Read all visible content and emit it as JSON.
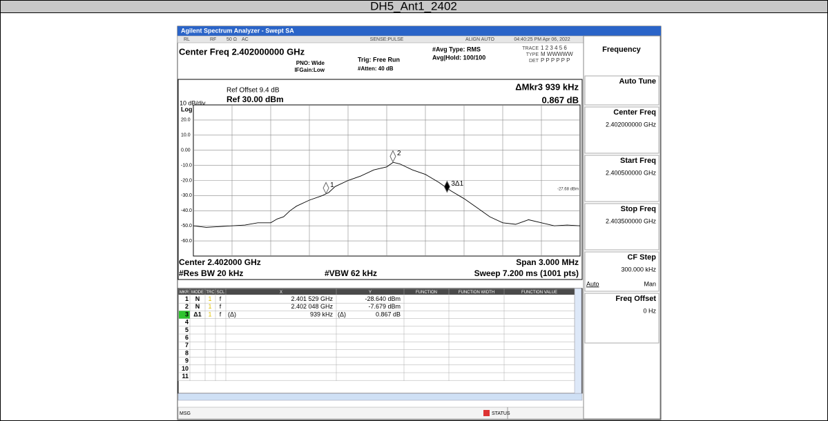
{
  "title": "DH5_Ant1_2402",
  "analyzer": {
    "window_title": "Agilent Spectrum Analyzer - Swept SA",
    "status_bar": [
      "RL",
      "RF",
      "50 Ω",
      "AC",
      "SENSE:PULSE",
      "ALIGN AUTO",
      "04:40:25 PM Apr 06, 2022"
    ],
    "settings": {
      "center_freq": "Center Freq 2.402000000 GHz",
      "pno": "PNO: Wide",
      "ifgain": "IFGain:Low",
      "trig": "Trig: Free Run",
      "atten": "#Atten: 40 dB",
      "avg_type": "#Avg Type: RMS",
      "avg_hold": "Avg|Hold: 100/100",
      "trace": "TRACE",
      "trace_nums": "1 2 3 4 5 6",
      "type": "TYPE",
      "type_val": "M WWWWW",
      "det": "DET",
      "det_val": "P P P P P P"
    },
    "plot": {
      "ref_offset": "Ref Offset 9.4 dB",
      "ref_level": "Ref 30.00 dBm",
      "scale": "10 dB/div",
      "scale_type": "Log",
      "delta_marker": "ΔMkr3 939 kHz",
      "delta_value": "0.867 dB",
      "display_line": "-27.68 dBm",
      "ylim": [
        -70,
        30
      ],
      "yticks": [
        {
          "value": 20,
          "label": "20.0"
        },
        {
          "value": 10,
          "label": "10.0"
        },
        {
          "value": 0,
          "label": "0.00"
        },
        {
          "value": -10,
          "label": "-10.0"
        },
        {
          "value": -20,
          "label": "-20.0"
        },
        {
          "value": -30,
          "label": "-30.0"
        },
        {
          "value": -40,
          "label": "-40.0"
        },
        {
          "value": -50,
          "label": "-50.0"
        },
        {
          "value": -60,
          "label": "-60.0"
        }
      ],
      "xlim": [
        2.4005,
        2.4035
      ],
      "trace": {
        "x": [
          2.4005,
          2.4006,
          2.4007,
          2.4008,
          2.4009,
          2.401,
          2.4011,
          2.40115,
          2.4012,
          2.40125,
          2.4013,
          2.4014,
          2.4015,
          2.40155,
          2.4016,
          2.4017,
          2.4018,
          2.4019,
          2.402,
          2.40205,
          2.4021,
          2.4022,
          2.4023,
          2.4024,
          2.4025,
          2.4026,
          2.4027,
          2.4028,
          2.4029,
          2.403,
          2.4031,
          2.4032,
          2.4033,
          2.4034,
          2.4035
        ],
        "y": [
          -50,
          -51,
          -50.5,
          -50,
          -49.5,
          -48,
          -48,
          -45.5,
          -44,
          -40,
          -37,
          -33,
          -30,
          -28,
          -24,
          -20,
          -17,
          -13,
          -11,
          -8,
          -9,
          -13,
          -16,
          -21,
          -27,
          -32,
          -38,
          -44,
          -48,
          -49,
          -46,
          -48,
          -50,
          -49.5,
          -50
        ]
      },
      "markers": [
        {
          "label": "1",
          "x": 2.401529,
          "y": -28.64
        },
        {
          "label": "2",
          "x": 2.402048,
          "y": -7.679
        },
        {
          "label": "3Δ1",
          "x": 2.402468,
          "y": -27.773
        }
      ],
      "footer": {
        "center": "Center 2.402000 GHz",
        "span": "Span 3.000 MHz",
        "rbw": "#Res BW 20 kHz",
        "vbw": "#VBW 62 kHz",
        "sweep": "Sweep  7.200 ms (1001 pts)"
      }
    },
    "marker_table": {
      "columns": [
        "MKR",
        "MODE",
        "TRC",
        "SCL",
        "X",
        "Y",
        "FUNCTION",
        "FUNCTION WIDTH",
        "FUNCTION VALUE"
      ],
      "rows": [
        {
          "mkr": "1",
          "mode": "N",
          "trc": "1",
          "scl": "f",
          "x": "2.401 529 GHz",
          "y": "-28.640 dBm"
        },
        {
          "mkr": "2",
          "mode": "N",
          "trc": "1",
          "scl": "f",
          "x": "2.402 048 GHz",
          "y": "-7.679 dBm"
        },
        {
          "mkr": "3",
          "mode": "Δ1",
          "trc": "1",
          "scl": "f",
          "x_fn": "(Δ)",
          "x": "939 kHz",
          "y_fn": "(Δ)",
          "y": "0.867 dB"
        },
        {
          "mkr": "4"
        },
        {
          "mkr": "5"
        },
        {
          "mkr": "6"
        },
        {
          "mkr": "7"
        },
        {
          "mkr": "8"
        },
        {
          "mkr": "9"
        },
        {
          "mkr": "10"
        },
        {
          "mkr": "11"
        }
      ]
    },
    "softkeys": {
      "menu": "Frequency",
      "keys": [
        {
          "label": "Auto Tune"
        },
        {
          "label": "Center Freq",
          "value": "2.402000000 GHz"
        },
        {
          "label": "Start Freq",
          "value": "2.400500000 GHz"
        },
        {
          "label": "Stop Freq",
          "value": "2.403500000 GHz"
        },
        {
          "label": "CF Step",
          "value": "300.000 kHz",
          "options": [
            "Auto",
            "Man"
          ]
        },
        {
          "label": "Freq Offset",
          "value": "0 Hz"
        }
      ]
    },
    "message_bar": {
      "msg": "MSG",
      "status": "STATUS"
    }
  }
}
